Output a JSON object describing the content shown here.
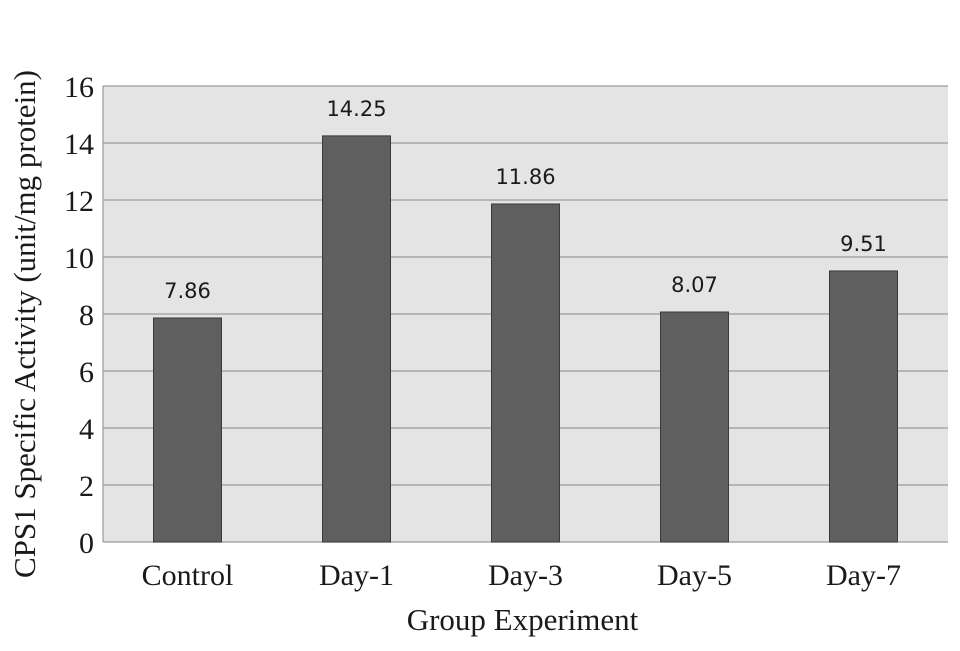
{
  "chart_data": {
    "type": "bar",
    "title": "",
    "xlabel": "Group Experiment",
    "ylabel": "CPS1 Specific Activity (unit/mg protein)",
    "categories": [
      "Control",
      "Day-1",
      "Day-3",
      "Day-5",
      "Day-7"
    ],
    "values": [
      7.86,
      14.25,
      11.86,
      8.07,
      9.51
    ],
    "data_labels": [
      "7.86",
      "14.25",
      "11.86",
      "8.07",
      "9.51"
    ],
    "ylim": [
      0,
      16
    ],
    "yticks": [
      "0",
      "2",
      "4",
      "6",
      "8",
      "10",
      "12",
      "14",
      "16"
    ],
    "grid": true,
    "legend": "none",
    "colors": {
      "bar": "#5f5f5f",
      "plot_background": "#e4e4e4",
      "gridline": "#9a9a9a"
    }
  }
}
